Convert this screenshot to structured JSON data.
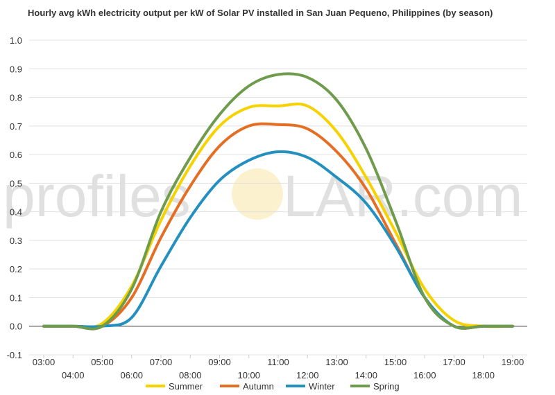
{
  "chart_data": {
    "type": "line",
    "title": "Hourly avg kWh electricity output per kW of Solar PV installed in San Juan Pequeno, Philippines (by season)",
    "xlabel": "",
    "ylabel": "",
    "ylim": [
      -0.1,
      1.0
    ],
    "yticks": [
      "-0.1",
      "0.0",
      "0.1",
      "0.2",
      "0.3",
      "0.4",
      "0.5",
      "0.6",
      "0.7",
      "0.8",
      "0.9",
      "1.0"
    ],
    "categories": [
      "03:00",
      "04:00",
      "05:00",
      "06:00",
      "07:00",
      "08:00",
      "09:00",
      "10:00",
      "11:00",
      "12:00",
      "13:00",
      "14:00",
      "15:00",
      "16:00",
      "17:00",
      "18:00",
      "19:00"
    ],
    "grid": true,
    "legend_position": "bottom",
    "watermark": {
      "left": "profiles",
      "right": "LAR.com",
      "icon": "sun-icon"
    },
    "series": [
      {
        "name": "Summer",
        "color": "#f5d200",
        "values": [
          0.0,
          0.0,
          0.01,
          0.14,
          0.37,
          0.56,
          0.7,
          0.765,
          0.77,
          0.77,
          0.68,
          0.52,
          0.33,
          0.13,
          0.02,
          0.0,
          0.0
        ]
      },
      {
        "name": "Autumn",
        "color": "#e56e25",
        "values": [
          0.0,
          0.0,
          0.0,
          0.1,
          0.31,
          0.49,
          0.63,
          0.7,
          0.705,
          0.69,
          0.61,
          0.48,
          0.29,
          0.1,
          0.0,
          0.0,
          0.0
        ]
      },
      {
        "name": "Winter",
        "color": "#2390bf",
        "values": [
          0.0,
          0.0,
          0.0,
          0.03,
          0.21,
          0.38,
          0.51,
          0.58,
          0.61,
          0.59,
          0.52,
          0.43,
          0.28,
          0.1,
          0.0,
          0.0,
          0.0
        ]
      },
      {
        "name": "Spring",
        "color": "#6e9b4c",
        "values": [
          0.0,
          0.0,
          0.0,
          0.13,
          0.4,
          0.59,
          0.74,
          0.84,
          0.88,
          0.87,
          0.79,
          0.62,
          0.37,
          0.1,
          0.0,
          0.0,
          0.0
        ]
      }
    ]
  }
}
